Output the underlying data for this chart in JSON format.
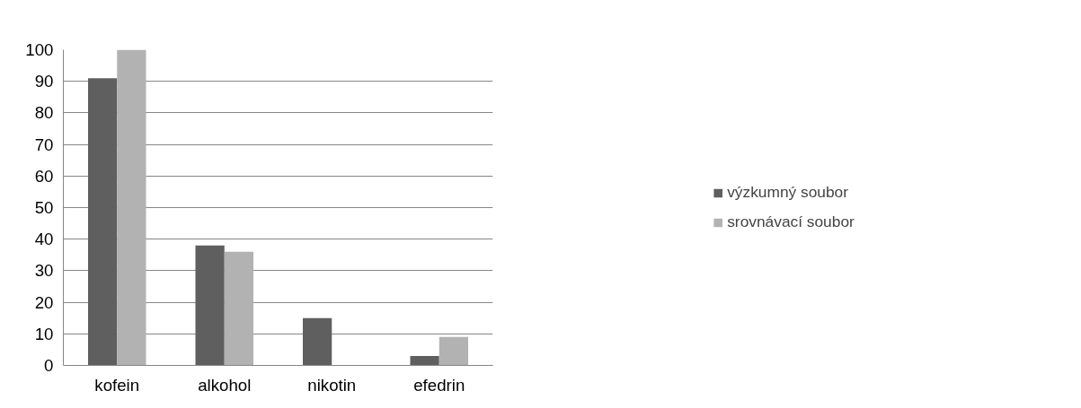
{
  "chart_data": {
    "type": "bar",
    "categories": [
      "kofein",
      "alkohol",
      "nikotin",
      "efedrin"
    ],
    "series": [
      {
        "name": "výzkumný soubor",
        "color": "#5f5f5f",
        "values": [
          91,
          38,
          15,
          3
        ]
      },
      {
        "name": "srovnávací soubor",
        "color": "#b2b2b2",
        "values": [
          100,
          36,
          0,
          9
        ]
      }
    ],
    "ylim": [
      0,
      100
    ],
    "yticks": [
      0,
      10,
      20,
      30,
      40,
      50,
      60,
      70,
      80,
      90,
      100
    ],
    "grid": "y",
    "legend": "right"
  }
}
